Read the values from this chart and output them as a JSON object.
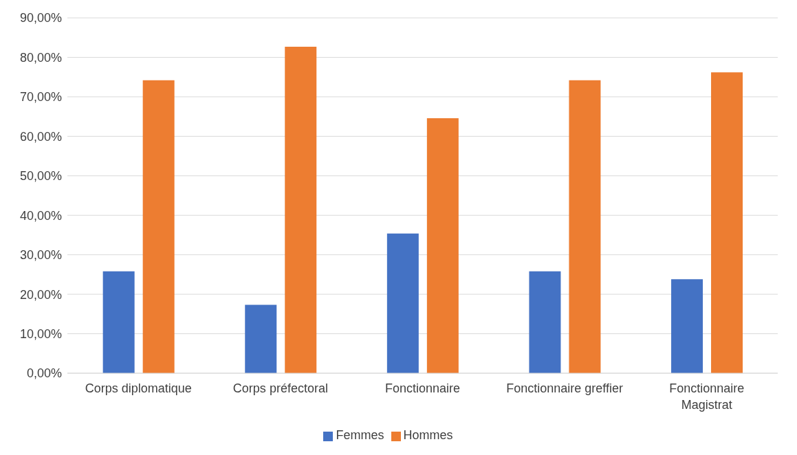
{
  "chart_data": {
    "type": "bar",
    "categories": [
      "Corps diplomatique",
      "Corps préfectoral",
      "Fonctionnaire",
      "Fonctionnaire greffier",
      "Fonctionnaire Magistrat"
    ],
    "series": [
      {
        "name": "Femmes",
        "color": "#4472c4",
        "values": [
          25.8,
          17.3,
          35.4,
          25.8,
          23.8
        ]
      },
      {
        "name": "Hommes",
        "color": "#ed7d31",
        "values": [
          74.2,
          82.7,
          64.6,
          74.2,
          76.2
        ]
      }
    ],
    "ylim": [
      0,
      90
    ],
    "yticks": [
      {
        "value": 0,
        "label": "0,00%"
      },
      {
        "value": 10,
        "label": "10,00%"
      },
      {
        "value": 20,
        "label": "20,00%"
      },
      {
        "value": 30,
        "label": "30,00%"
      },
      {
        "value": 40,
        "label": "40,00%"
      },
      {
        "value": 50,
        "label": "50,00%"
      },
      {
        "value": 60,
        "label": "60,00%"
      },
      {
        "value": 70,
        "label": "70,00%"
      },
      {
        "value": 80,
        "label": "80,00%"
      },
      {
        "value": 90,
        "label": "90,00%"
      }
    ],
    "grid": "y",
    "legend": "bottom"
  }
}
